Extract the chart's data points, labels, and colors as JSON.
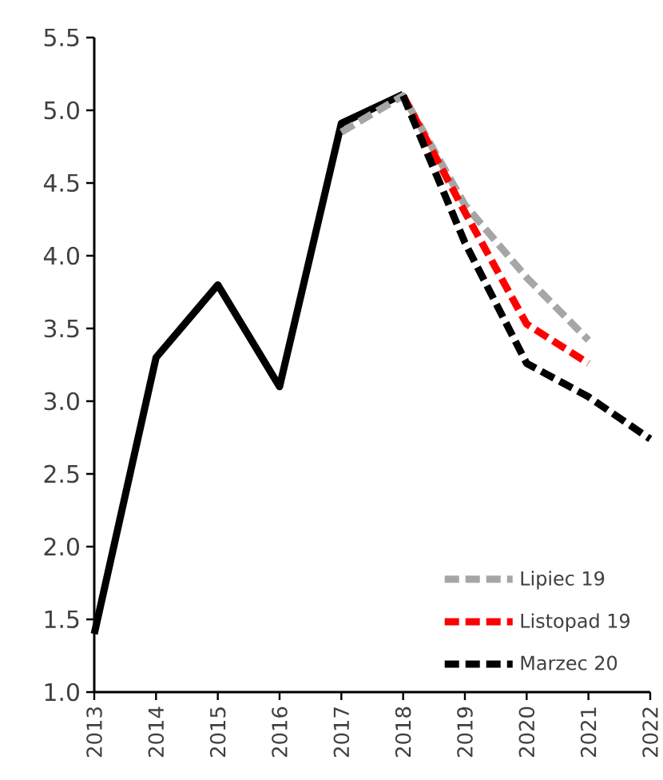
{
  "chart_data": {
    "type": "line",
    "categories": [
      "2013",
      "2014",
      "2015",
      "2016",
      "2017",
      "2018",
      "2019",
      "2020",
      "2021",
      "2022"
    ],
    "series": [
      {
        "color": "#000000",
        "line_style": "solid",
        "values": [
          1.4,
          3.3,
          3.8,
          3.1,
          4.91,
          5.11,
          null,
          null,
          null,
          null
        ]
      },
      {
        "name": "Lipiec 19",
        "color": "#a6a6a6",
        "line_style": "dashed",
        "values": [
          null,
          null,
          null,
          null,
          4.85,
          5.1,
          4.35,
          3.85,
          3.42,
          null
        ]
      },
      {
        "name": "Listopad 19",
        "color": "#ff0000",
        "line_style": "dashed",
        "values": [
          null,
          null,
          null,
          null,
          null,
          5.1,
          4.3,
          3.53,
          3.26,
          null
        ]
      },
      {
        "name": "Marzec 20",
        "color": "#000000",
        "line_style": "dashed",
        "values": [
          null,
          null,
          null,
          null,
          null,
          5.1,
          4.09,
          3.26,
          3.03,
          2.74
        ]
      }
    ],
    "ylim": [
      1.0,
      5.5
    ],
    "yticks": [
      {
        "value": 1.0,
        "label": "1.0"
      },
      {
        "value": 1.5,
        "label": "1.5"
      },
      {
        "value": 2.0,
        "label": "2.0"
      },
      {
        "value": 2.5,
        "label": "2.5"
      },
      {
        "value": 3.0,
        "label": "3.0"
      },
      {
        "value": 3.5,
        "label": "3.5"
      },
      {
        "value": 4.0,
        "label": "4.0"
      },
      {
        "value": 4.5,
        "label": "4.5"
      },
      {
        "value": 5.0,
        "label": "5.0"
      },
      {
        "value": 5.5,
        "label": "5.5"
      }
    ],
    "grid": false,
    "legend": "bottom right",
    "marker": "none"
  }
}
